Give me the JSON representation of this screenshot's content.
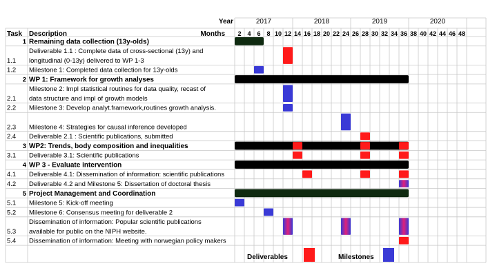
{
  "header": {
    "year_label": "Year",
    "months_label": "Months",
    "task_col": "Task",
    "desc_col": "Description"
  },
  "years": [
    {
      "label": "2017",
      "start_month": 0,
      "end_month": 12
    },
    {
      "label": "2018",
      "start_month": 12,
      "end_month": 24
    },
    {
      "label": "2019",
      "start_month": 24,
      "end_month": 36
    },
    {
      "label": "2020",
      "start_month": 36,
      "end_month": 48
    }
  ],
  "months": [
    2,
    4,
    6,
    8,
    10,
    12,
    14,
    16,
    18,
    20,
    22,
    24,
    26,
    28,
    30,
    32,
    34,
    36,
    38,
    40,
    42,
    44,
    46,
    48
  ],
  "rows": [
    {
      "task": "1",
      "lines": [
        "Remaining data collection (13y-olds)"
      ],
      "bold": true,
      "height": 1
    },
    {
      "task": "1.1",
      "lines": [
        "Deliverable 1.1 : Complete data of cross-sectional (13y) and",
        "longitudinal (0-13y) delivered to WP 1-3"
      ],
      "bold": false,
      "height": 2
    },
    {
      "task": "1.2",
      "lines": [
        "Milestone 1: Completed data collection for 13y-olds"
      ],
      "bold": false,
      "height": 1
    },
    {
      "task": "2",
      "lines": [
        "WP 1: Framework for growth analyses"
      ],
      "bold": true,
      "height": 1
    },
    {
      "task": "2.1",
      "lines": [
        "Milestone 2: Impl statistical routines for data quality, recast of",
        "data structure and impl of growth models"
      ],
      "bold": false,
      "height": 2
    },
    {
      "task": "2.2",
      "lines": [
        "Milestone 3: Develop analyt.framework,routines growth analysis."
      ],
      "bold": false,
      "height": 1
    },
    {
      "task": "2.3",
      "lines": [
        "Milestone 4: Strategies for causal inference developed"
      ],
      "bold": false,
      "height": 2
    },
    {
      "task": "2.4",
      "lines": [
        "Deliverable 2.1 : Scientific publications, submitted"
      ],
      "bold": false,
      "height": 1
    },
    {
      "task": "3",
      "lines": [
        "WP2: Trends, body composition and inequalities"
      ],
      "bold": true,
      "height": 1
    },
    {
      "task": "3.1",
      "lines": [
        "Deliverable 3.1: Scientific publications"
      ],
      "bold": false,
      "height": 1
    },
    {
      "task": "4",
      "lines": [
        "WP 3 - Evaluate intervention"
      ],
      "bold": true,
      "height": 1
    },
    {
      "task": "4.1",
      "lines": [
        "Deliverable 4.1: Dissemination of information: scientific publications"
      ],
      "bold": false,
      "height": 1
    },
    {
      "task": "4.2",
      "lines": [
        "Deliverable 4.2 and Milestone 5: Dissertation of doctoral thesis"
      ],
      "bold": false,
      "height": 1
    },
    {
      "task": "5",
      "lines": [
        "Project Management and Coordination"
      ],
      "bold": true,
      "height": 1
    },
    {
      "task": "5.1",
      "lines": [
        "Milestone 5: Kick-off meeting"
      ],
      "bold": false,
      "height": 1
    },
    {
      "task": "5.2",
      "lines": [
        "Milestone 6: Consensus meeting for deliverable 2"
      ],
      "bold": false,
      "height": 1
    },
    {
      "task": "5.3",
      "lines": [
        "Dissemination of information: Popular scientific publications",
        "available for public on the NIPH website."
      ],
      "bold": false,
      "height": 2
    },
    {
      "task": "5.4",
      "lines": [
        "Dissemination of information: Meeting with norwegian policy makers"
      ],
      "bold": false,
      "height": 1
    }
  ],
  "legend": {
    "deliverables_label": "Deliverables",
    "milestones_label": "Milestones"
  },
  "colors": {
    "deliverable": "#ff1a1a",
    "milestone": "#3a3ad6",
    "wp_black": "#000000",
    "wp_green": "#0f2a10",
    "grid": "#c8c8c8"
  },
  "chart_data": {
    "type": "gantt",
    "x_unit": "months",
    "xlim": [
      0,
      48
    ],
    "bars": [
      {
        "row": 0,
        "kind": "wp_green",
        "start": 0,
        "end": 6
      },
      {
        "row": 1,
        "kind": "deliverable",
        "start": 10,
        "end": 12
      },
      {
        "row": 2,
        "kind": "milestone",
        "start": 4,
        "end": 6
      },
      {
        "row": 3,
        "kind": "wp_black",
        "start": 0,
        "end": 36
      },
      {
        "row": 4,
        "kind": "milestone",
        "start": 10,
        "end": 12
      },
      {
        "row": 5,
        "kind": "milestone",
        "start": 10,
        "end": 12
      },
      {
        "row": 6,
        "kind": "milestone",
        "start": 22,
        "end": 24
      },
      {
        "row": 7,
        "kind": "deliverable",
        "start": 26,
        "end": 28
      },
      {
        "row": 8,
        "kind": "wp_black",
        "start": 0,
        "end": 36
      },
      {
        "row": 8,
        "kind": "deliverable",
        "start": 12,
        "end": 14
      },
      {
        "row": 8,
        "kind": "deliverable",
        "start": 26,
        "end": 28
      },
      {
        "row": 8,
        "kind": "deliverable",
        "start": 34,
        "end": 36
      },
      {
        "row": 9,
        "kind": "deliverable",
        "start": 12,
        "end": 14
      },
      {
        "row": 9,
        "kind": "deliverable",
        "start": 26,
        "end": 28
      },
      {
        "row": 9,
        "kind": "deliverable",
        "start": 34,
        "end": 36
      },
      {
        "row": 10,
        "kind": "wp_black",
        "start": 0,
        "end": 36
      },
      {
        "row": 11,
        "kind": "deliverable",
        "start": 14,
        "end": 16
      },
      {
        "row": 11,
        "kind": "deliverable",
        "start": 26,
        "end": 28
      },
      {
        "row": 11,
        "kind": "deliverable",
        "start": 34,
        "end": 36
      },
      {
        "row": 12,
        "kind": "mixed",
        "start": 34,
        "end": 36
      },
      {
        "row": 13,
        "kind": "wp_green",
        "start": 0,
        "end": 36
      },
      {
        "row": 14,
        "kind": "milestone",
        "start": 0,
        "end": 2
      },
      {
        "row": 15,
        "kind": "milestone",
        "start": 6,
        "end": 8
      },
      {
        "row": 16,
        "kind": "mixed",
        "start": 10,
        "end": 12
      },
      {
        "row": 16,
        "kind": "mixed",
        "start": 22,
        "end": 24
      },
      {
        "row": 16,
        "kind": "mixed",
        "start": 34,
        "end": 36
      },
      {
        "row": 17,
        "kind": "deliverable",
        "start": 34,
        "end": 36
      }
    ]
  }
}
